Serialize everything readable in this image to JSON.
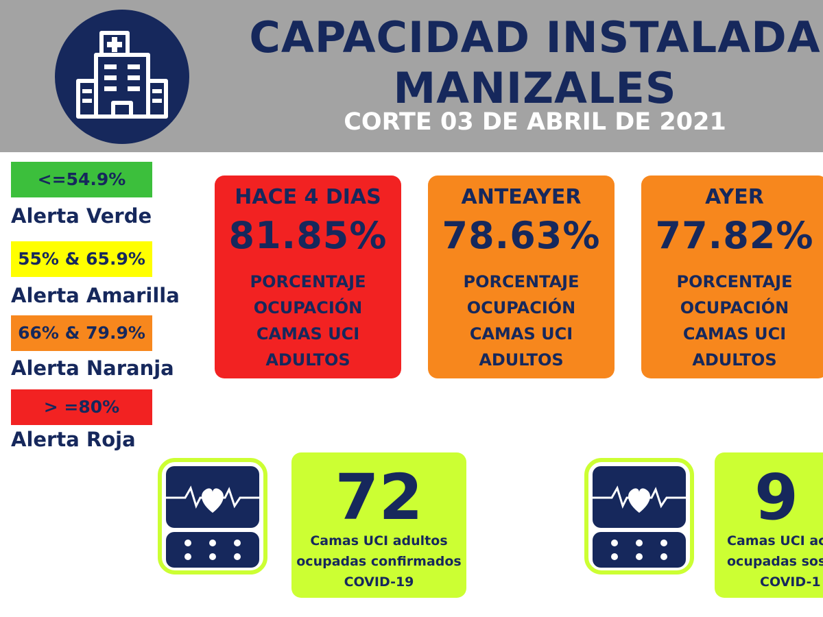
{
  "header": {
    "title_line1": "CAPACIDAD INSTALADA",
    "title_line2": "MANIZALES",
    "subtitle": "CORTE 03 DE ABRIL DE 2021",
    "logo_icon": "hospital-icon"
  },
  "legend": [
    {
      "range": "<=54.9%",
      "label": "Alerta Verde",
      "color": "#3cbf3c"
    },
    {
      "range": "55% & 65.9%",
      "label": "Alerta Amarilla",
      "color": "#ffff00"
    },
    {
      "range": "66% & 79.9%",
      "label": "Alerta Naranja",
      "color": "#f7871d"
    },
    {
      "range": "> =80%",
      "label": "Alerta Roja",
      "color": "#f22222"
    }
  ],
  "cards": [
    {
      "when": "HACE 4 DIAS",
      "percent": "81.85%",
      "desc1": "PORCENTAJE",
      "desc2": "OCUPACIÓN",
      "desc3": "CAMAS UCI",
      "desc4": "ADULTOS",
      "color": "#f22222"
    },
    {
      "when": "ANTEAYER",
      "percent": "78.63%",
      "desc1": "PORCENTAJE",
      "desc2": "OCUPACIÓN",
      "desc3": "CAMAS UCI",
      "desc4": "ADULTOS",
      "color": "#f7871d"
    },
    {
      "when": "AYER",
      "percent": "77.82%",
      "desc1": "PORCENTAJE",
      "desc2": "OCUPACIÓN",
      "desc3": "CAMAS UCI",
      "desc4": "ADULTOS",
      "color": "#f7871d"
    }
  ],
  "stats": [
    {
      "number": "72",
      "line1": "Camas UCI adultos",
      "line2": "ocupadas confirmados",
      "line3": "COVID-19",
      "icon": "heart-monitor-icon"
    },
    {
      "number": "9",
      "line1": "Camas UCI ac",
      "line2": "ocupadas sospe",
      "line3": "COVID-1",
      "icon": "heart-monitor-icon"
    }
  ],
  "colors": {
    "navy": "#16285c",
    "header_gray": "#a3a3a3",
    "lime": "#ccff33"
  }
}
